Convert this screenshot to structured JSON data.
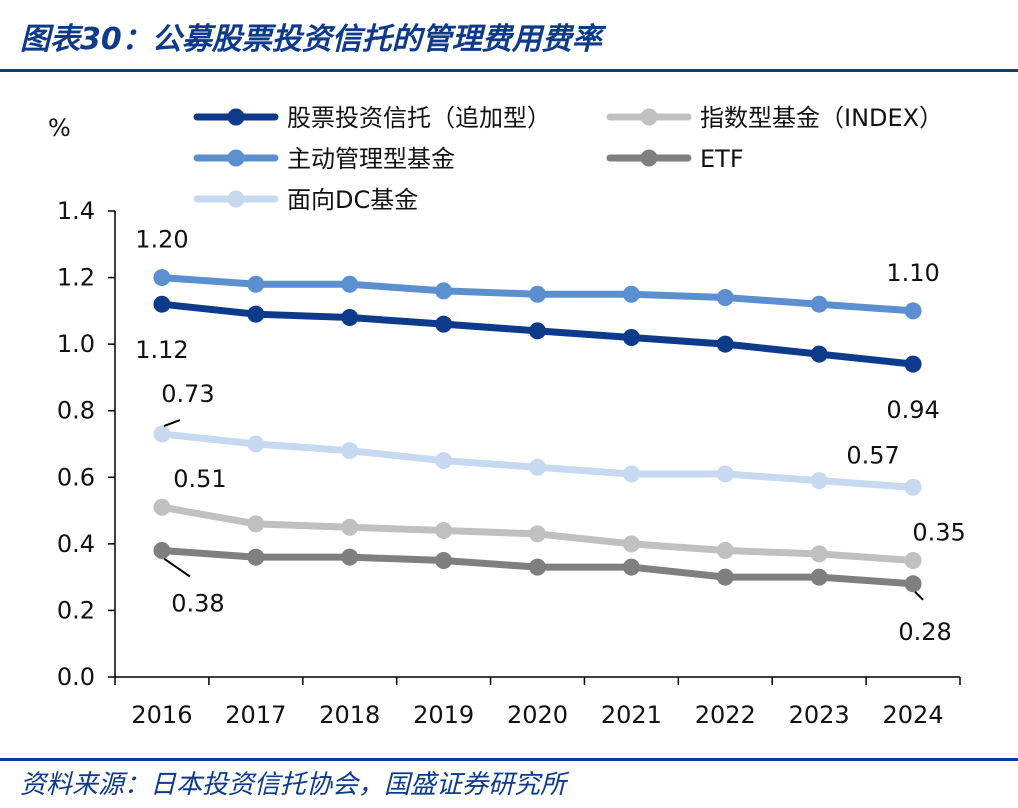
{
  "title": "图表30：公募股票投资信托的管理费用费率",
  "source": "资料来源：日本投资信托协会，国盛证券研究所",
  "chart_data": {
    "type": "line",
    "yunit": "%",
    "categories": [
      "2016",
      "2017",
      "2018",
      "2019",
      "2020",
      "2021",
      "2022",
      "2023",
      "2024"
    ],
    "ylim": [
      0,
      1.4
    ],
    "yticks": [
      "0.0",
      "0.2",
      "0.4",
      "0.6",
      "0.8",
      "1.0",
      "1.2",
      "1.4"
    ],
    "grid": false,
    "series": [
      {
        "name": "股票投资信托（追加型）",
        "color": "#0d3a8a",
        "values": [
          1.12,
          1.09,
          1.08,
          1.06,
          1.04,
          1.02,
          1.0,
          0.97,
          0.94
        ]
      },
      {
        "name": "指数型基金（INDEX）",
        "color": "#c0c0c0",
        "values": [
          0.51,
          0.46,
          0.45,
          0.44,
          0.43,
          0.4,
          0.38,
          0.37,
          0.35
        ]
      },
      {
        "name": "主动管理型基金",
        "color": "#5b8fd0",
        "values": [
          1.2,
          1.18,
          1.18,
          1.16,
          1.15,
          1.15,
          1.14,
          1.12,
          1.1
        ]
      },
      {
        "name": "ETF",
        "color": "#7f7f7f",
        "values": [
          0.38,
          0.36,
          0.36,
          0.35,
          0.33,
          0.33,
          0.3,
          0.3,
          0.28
        ]
      },
      {
        "name": "面向DC基金",
        "color": "#c6d9f0",
        "values": [
          0.73,
          0.7,
          0.68,
          0.65,
          0.63,
          0.61,
          0.61,
          0.59,
          0.57
        ]
      }
    ],
    "annotations": [
      {
        "text": "1.20",
        "series": 2,
        "index": 0
      },
      {
        "text": "1.10",
        "series": 2,
        "index": 8
      },
      {
        "text": "1.12",
        "series": 0,
        "index": 0
      },
      {
        "text": "0.94",
        "series": 0,
        "index": 8
      },
      {
        "text": "0.73",
        "series": 4,
        "index": 0
      },
      {
        "text": "0.57",
        "series": 4,
        "index": 8
      },
      {
        "text": "0.51",
        "series": 1,
        "index": 0
      },
      {
        "text": "0.35",
        "series": 1,
        "index": 8
      },
      {
        "text": "0.38",
        "series": 3,
        "index": 0
      },
      {
        "text": "0.28",
        "series": 3,
        "index": 8
      }
    ]
  }
}
